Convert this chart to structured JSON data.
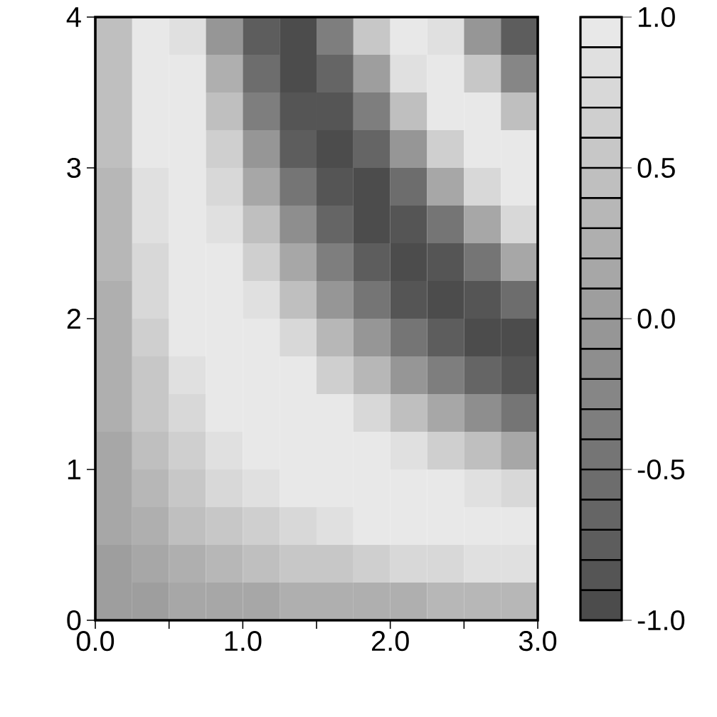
{
  "chart_data": {
    "type": "heatmap",
    "x": [
      0.125,
      0.375,
      0.625,
      0.875,
      1.125,
      1.375,
      1.625,
      1.875,
      2.125,
      2.375,
      2.625,
      2.875
    ],
    "y": [
      3.875,
      3.625,
      3.375,
      3.125,
      2.875,
      2.625,
      2.375,
      2.125,
      1.875,
      1.625,
      1.375,
      1.125,
      0.875,
      0.625,
      0.375,
      0.125
    ],
    "cells": [
      [
        0.4,
        1.0,
        0.8,
        -0.05,
        -0.8,
        -1.0,
        -0.4,
        0.5,
        1.0,
        0.8,
        -0.05,
        -0.8
      ],
      [
        0.4,
        1.0,
        0.9,
        0.2,
        -0.6,
        -1.0,
        -0.7,
        0.05,
        0.8,
        1.0,
        0.5,
        -0.3
      ],
      [
        0.4,
        0.9,
        0.9,
        0.4,
        -0.4,
        -0.9,
        -0.9,
        -0.4,
        0.4,
        0.9,
        0.9,
        0.4
      ],
      [
        0.4,
        0.9,
        1.0,
        0.6,
        -0.1,
        -0.8,
        -1.0,
        -0.7,
        -0.1,
        0.6,
        1.0,
        0.9
      ],
      [
        0.3,
        0.8,
        1.0,
        0.7,
        0.1,
        -0.5,
        -0.9,
        -1.0,
        -0.6,
        0.1,
        0.7,
        1.0
      ],
      [
        0.3,
        0.8,
        1.0,
        0.8,
        0.4,
        -0.2,
        -0.7,
        -1.0,
        -0.9,
        -0.5,
        0.1,
        0.7
      ],
      [
        0.3,
        0.7,
        1.0,
        0.9,
        0.6,
        0.1,
        -0.4,
        -0.8,
        -1.0,
        -0.9,
        -0.5,
        0.1
      ],
      [
        0.2,
        0.7,
        0.9,
        1.0,
        0.8,
        0.4,
        -0.1,
        -0.5,
        -0.9,
        -1.0,
        -0.9,
        -0.6
      ],
      [
        0.2,
        0.6,
        0.9,
        1.0,
        0.9,
        0.7,
        0.3,
        -0.1,
        -0.5,
        -0.8,
        -1.0,
        -1.0
      ],
      [
        0.2,
        0.5,
        0.8,
        1.0,
        1.0,
        0.9,
        0.6,
        0.3,
        -0.1,
        -0.4,
        -0.7,
        -0.9
      ],
      [
        0.2,
        0.5,
        0.7,
        0.9,
        1.0,
        1.0,
        0.9,
        0.7,
        0.4,
        0.1,
        -0.2,
        -0.5
      ],
      [
        0.1,
        0.4,
        0.6,
        0.8,
        0.9,
        1.0,
        1.0,
        0.9,
        0.8,
        0.6,
        0.4,
        0.1
      ],
      [
        0.1,
        0.3,
        0.5,
        0.7,
        0.8,
        0.9,
        1.0,
        1.0,
        1.0,
        0.9,
        0.8,
        0.7
      ],
      [
        0.1,
        0.2,
        0.4,
        0.5,
        0.6,
        0.7,
        0.8,
        0.9,
        0.9,
        1.0,
        1.0,
        1.0
      ],
      [
        0.05,
        0.1,
        0.2,
        0.3,
        0.4,
        0.5,
        0.5,
        0.6,
        0.7,
        0.7,
        0.8,
        0.8
      ],
      [
        0.05,
        0.05,
        0.1,
        0.1,
        0.1,
        0.2,
        0.2,
        0.2,
        0.2,
        0.3,
        0.3,
        0.3
      ]
    ],
    "xlim": [
      0,
      3
    ],
    "ylim": [
      0,
      4
    ],
    "xticks": [
      {
        "value": 0,
        "label": "0.0"
      },
      {
        "value": 0.5,
        "label": null
      },
      {
        "value": 1,
        "label": "1.0"
      },
      {
        "value": 1.5,
        "label": null
      },
      {
        "value": 2,
        "label": "2.0"
      },
      {
        "value": 2.5,
        "label": null
      },
      {
        "value": 3,
        "label": "3.0"
      }
    ],
    "yticks": [
      0,
      1,
      2,
      3,
      4
    ],
    "clim": [
      -1,
      1
    ],
    "cticks": [
      {
        "value": -1,
        "label": "-1.0"
      },
      {
        "value": -0.9,
        "label": null
      },
      {
        "value": -0.8,
        "label": null
      },
      {
        "value": -0.7,
        "label": null
      },
      {
        "value": -0.6,
        "label": null
      },
      {
        "value": -0.5,
        "label": "-0.5"
      },
      {
        "value": -0.4,
        "label": null
      },
      {
        "value": -0.3,
        "label": null
      },
      {
        "value": -0.2,
        "label": null
      },
      {
        "value": -0.1,
        "label": null
      },
      {
        "value": 0,
        "label": "0.0"
      },
      {
        "value": 0.1,
        "label": null
      },
      {
        "value": 0.2,
        "label": null
      },
      {
        "value": 0.3,
        "label": null
      },
      {
        "value": 0.4,
        "label": null
      },
      {
        "value": 0.5,
        "label": "0.5"
      },
      {
        "value": 0.6,
        "label": null
      },
      {
        "value": 0.7,
        "label": null
      },
      {
        "value": 0.8,
        "label": null
      },
      {
        "value": 0.9,
        "label": null
      },
      {
        "value": 1,
        "label": "1.0"
      }
    ]
  }
}
